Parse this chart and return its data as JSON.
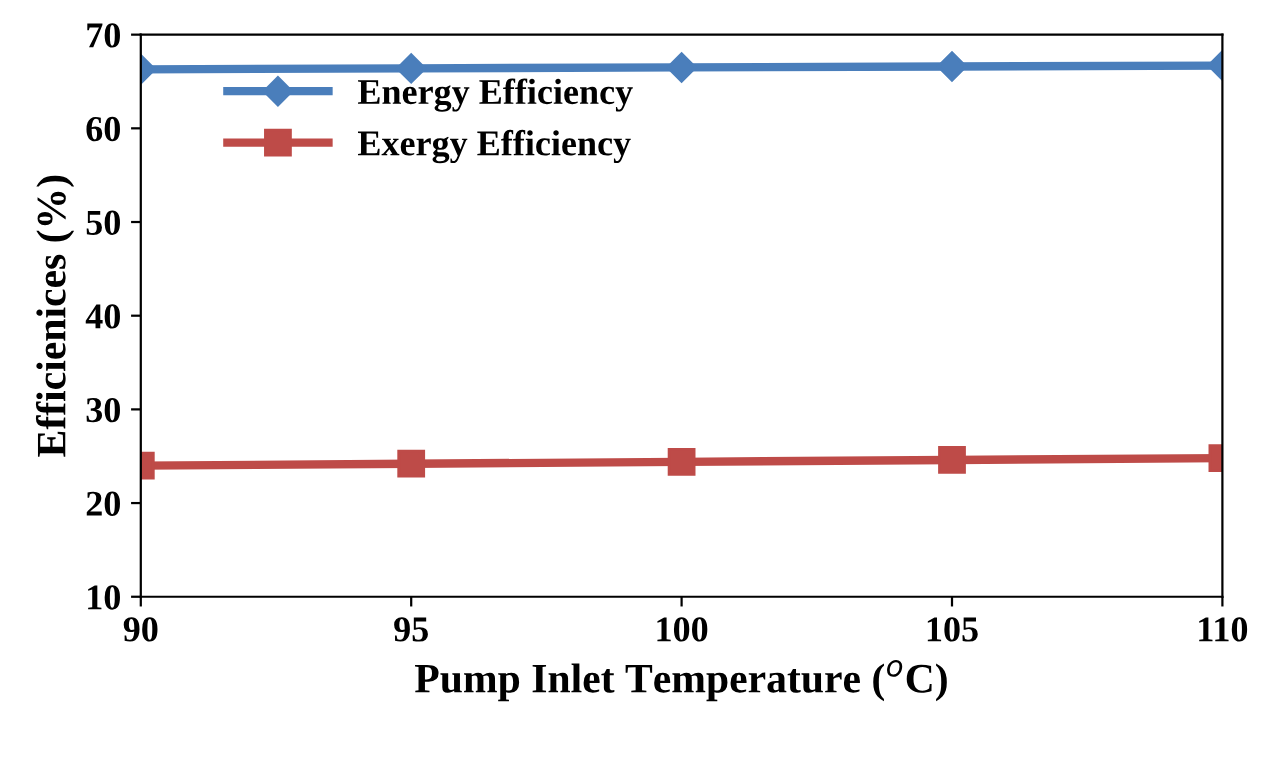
{
  "chart_data": {
    "type": "line",
    "xlabel": "Pump Inlet Temperature ($^{o}$C)",
    "ylabel": "Efficienices (%)",
    "x": [
      90,
      95,
      100,
      105,
      110
    ],
    "series": [
      {
        "name": "Energy Efficiency",
        "color": "#4a7ebb",
        "marker": "diamond",
        "values": [
          66.3,
          66.4,
          66.5,
          66.6,
          66.7
        ]
      },
      {
        "name": "Exergy Efficiency",
        "color": "#be4b48",
        "marker": "square",
        "values": [
          24.0,
          24.2,
          24.4,
          24.6,
          24.8
        ]
      }
    ],
    "xlim": [
      90,
      110
    ],
    "xticks": [
      90,
      95,
      100,
      105,
      110
    ],
    "ylim": [
      10,
      70
    ],
    "yticks": [
      10,
      20,
      30,
      40,
      50,
      60,
      70
    ],
    "grid": false,
    "legend": "top left",
    "line_style": "solid"
  }
}
